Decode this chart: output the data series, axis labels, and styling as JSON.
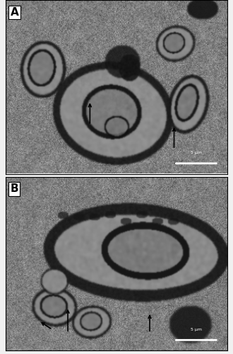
{
  "figure_width": 3.3,
  "figure_height": 5.0,
  "dpi": 100,
  "panel_A_label": "A",
  "panel_B_label": "B",
  "label_fontsize": 11,
  "label_fontweight": "bold",
  "background_color": "#f0f0f0",
  "border_color": "#000000",
  "scale_bar_text": "5 μm",
  "scale_bar_fontsize": 4.5
}
